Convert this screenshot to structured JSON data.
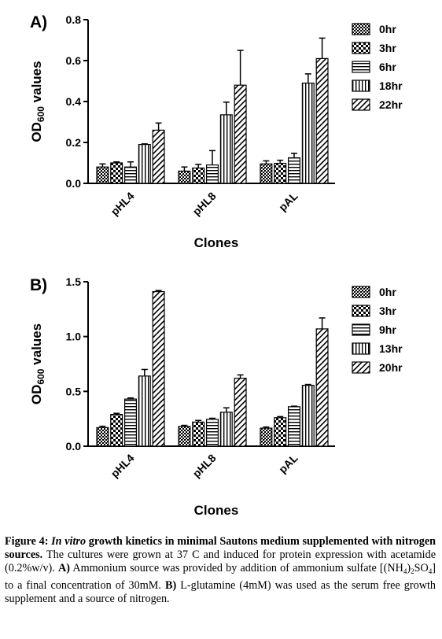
{
  "figure": {
    "charts": [
      {
        "panel_label": "A)",
        "chart_data": {
          "type": "bar",
          "title": "",
          "xlabel": "Clones",
          "ylabel": "OD600 values",
          "ylabel_main": "OD",
          "ylabel_sub": "600",
          "ylabel_rest": " values",
          "categories": [
            "pHL4",
            "pHL8",
            "pAL"
          ],
          "ylim": [
            0,
            0.8
          ],
          "yticks": [
            "0.0",
            "0.2",
            "0.4",
            "0.6",
            "0.8"
          ],
          "legend_position": "right",
          "series": [
            {
              "name": "0hr",
              "pattern": "crosshatch",
              "values": [
                0.08,
                0.06,
                0.095
              ],
              "errors": [
                0.015,
                0.02,
                0.015
              ]
            },
            {
              "name": "3hr",
              "pattern": "checker",
              "values": [
                0.1,
                0.075,
                0.098
              ],
              "errors": [
                0.005,
                0.018,
                0.015
              ]
            },
            {
              "name": "6hr",
              "pattern": "hlines",
              "values": [
                0.08,
                0.09,
                0.125
              ],
              "errors": [
                0.025,
                0.07,
                0.022
              ]
            },
            {
              "name": "18hr",
              "pattern": "vlines",
              "values": [
                0.19,
                0.335,
                0.49
              ],
              "errors": [
                0.003,
                0.062,
                0.045
              ]
            },
            {
              "name": "22hr",
              "pattern": "diag",
              "values": [
                0.26,
                0.48,
                0.61
              ],
              "errors": [
                0.035,
                0.17,
                0.1
              ]
            }
          ]
        }
      },
      {
        "panel_label": "B)",
        "chart_data": {
          "type": "bar",
          "title": "",
          "xlabel": "Clones",
          "ylabel": "OD600 values",
          "ylabel_main": "OD",
          "ylabel_sub": "600",
          "ylabel_rest": " values",
          "categories": [
            "pHL4",
            "pHL8",
            "pAL"
          ],
          "ylim": [
            0,
            1.5
          ],
          "yticks": [
            "0.0",
            "0.5",
            "1.0",
            "1.5"
          ],
          "legend_position": "right",
          "series": [
            {
              "name": "0hr",
              "pattern": "crosshatch",
              "values": [
                0.17,
                0.18,
                0.165
              ],
              "errors": [
                0.012,
                0.01,
                0.01
              ]
            },
            {
              "name": "3hr",
              "pattern": "checker",
              "values": [
                0.29,
                0.22,
                0.26
              ],
              "errors": [
                0.01,
                0.015,
                0.01
              ]
            },
            {
              "name": "9hr",
              "pattern": "hlines",
              "values": [
                0.43,
                0.245,
                0.36
              ],
              "errors": [
                0.01,
                0.01,
                0.005
              ]
            },
            {
              "name": "13hr",
              "pattern": "vlines",
              "values": [
                0.64,
                0.31,
                0.555
              ],
              "errors": [
                0.06,
                0.04,
                0.008
              ]
            },
            {
              "name": "20hr",
              "pattern": "diag",
              "values": [
                1.41,
                0.62,
                1.07
              ],
              "errors": [
                0.01,
                0.03,
                0.1
              ]
            }
          ]
        }
      }
    ]
  },
  "caption": {
    "figure_label": "Figure 4:",
    "title_italic": "In vitro",
    "title_rest": " growth kinetics in minimal Sautons medium supplemented with nitrogen sources.",
    "text_1": " The cultures were grown at 37 C and induced for protein expression with acetamide (0.2%w/v). ",
    "label_a": "A)",
    "text_2": " Ammonium source was provided by addition of ammonium sulfate [(NH",
    "sub_1": "4",
    "text_3": ")",
    "sub_2": "2",
    "text_4": "SO",
    "sub_3": "4",
    "text_5": "] to a final concentration of 30mM. ",
    "label_b": "B)",
    "text_6": " L-glutamine (4mM) was used as the serum free growth supplement and a source of nitrogen."
  }
}
